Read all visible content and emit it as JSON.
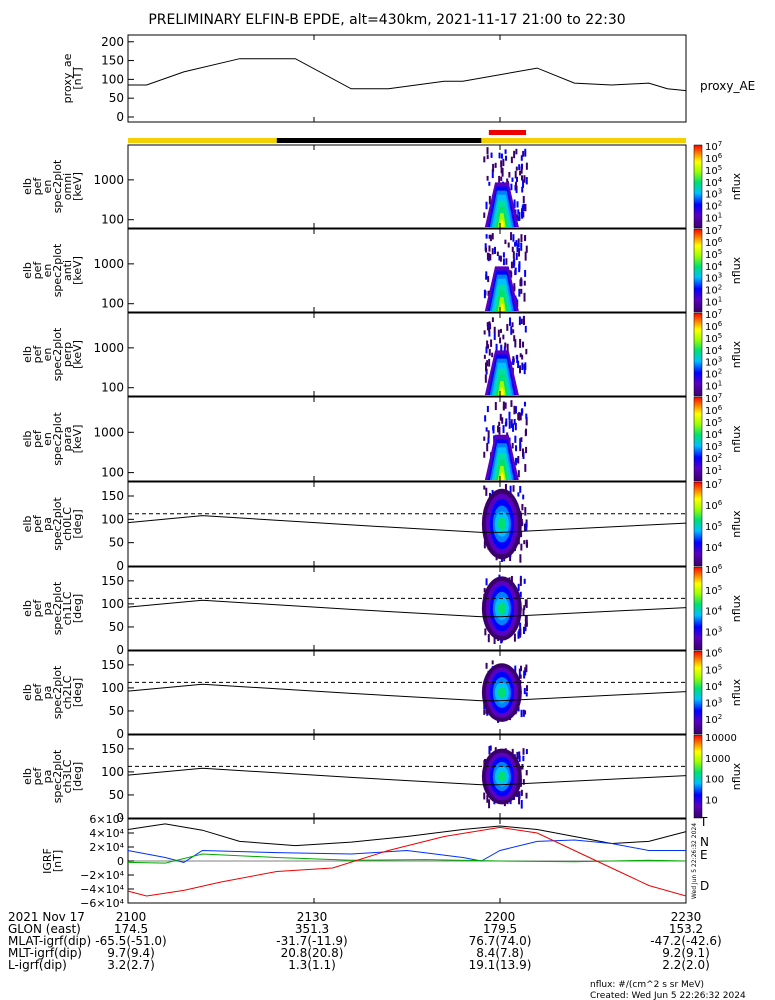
{
  "title": "PRELIMINARY ELFIN-B EPDE, alt=430km, 2021-11-17 21:00 to 22:30",
  "colors": {
    "gold": "#f5d000",
    "black": "#000000",
    "red": "#ee0000",
    "green": "#00aa00",
    "blue": "#0030ff",
    "line": "#000000"
  },
  "chart_data": [
    {
      "type": "line",
      "name": "proxy_ae",
      "ylabel": [
        "proxy_ae",
        "[nT]"
      ],
      "right_label": "proxy_AE",
      "yticks": [
        "200",
        "150",
        "100",
        "50",
        "0"
      ],
      "ylim": [
        0,
        210
      ],
      "x": [
        21.0,
        21.05,
        21.15,
        21.3,
        21.45,
        21.6,
        21.7,
        21.85,
        21.9,
        22.1,
        22.2,
        22.3,
        22.4,
        22.45,
        22.5
      ],
      "values": [
        85,
        85,
        120,
        155,
        155,
        75,
        75,
        95,
        95,
        130,
        90,
        85,
        90,
        75,
        70
      ]
    },
    {
      "type": "bar",
      "name": "orbit-segment-bar",
      "segments": [
        {
          "x0": 21.0,
          "x1": 21.4,
          "color": "gold"
        },
        {
          "x0": 21.4,
          "x1": 21.95,
          "color": "black"
        },
        {
          "x0": 21.95,
          "x1": 22.5,
          "color": "gold"
        }
      ],
      "science_zone": {
        "x0": 21.97,
        "x1": 22.07,
        "color": "red"
      }
    },
    {
      "type": "heatmap",
      "name": "spec-omni",
      "ylabel": [
        "elb",
        "pef",
        "en",
        "spec2plot",
        "omni",
        "[keV]"
      ],
      "yticks": [
        "1000",
        "100"
      ],
      "colorbar": {
        "ticks": [
          "10^7",
          "10^6",
          "10^5",
          "10^4",
          "10^3",
          "10^2",
          "10^1"
        ],
        "label": "nflux"
      }
    },
    {
      "type": "heatmap",
      "name": "spec-anti",
      "ylabel": [
        "elb",
        "pef",
        "en",
        "spec2plot",
        "anti",
        "[keV]"
      ],
      "yticks": [
        "1000",
        "100"
      ],
      "colorbar": {
        "ticks": [
          "10^7",
          "10^6",
          "10^5",
          "10^4",
          "10^3",
          "10^2",
          "10^1"
        ],
        "label": "nflux"
      }
    },
    {
      "type": "heatmap",
      "name": "spec-perp",
      "ylabel": [
        "elb",
        "pef",
        "en",
        "spec2plot",
        "perp",
        "[keV]"
      ],
      "yticks": [
        "1000",
        "100"
      ],
      "colorbar": {
        "ticks": [
          "10^7",
          "10^6",
          "10^5",
          "10^4",
          "10^3",
          "10^2",
          "10^1"
        ],
        "label": "nflux"
      }
    },
    {
      "type": "heatmap",
      "name": "spec-para",
      "ylabel": [
        "elb",
        "pef",
        "en",
        "spec2plot",
        "para",
        "[keV]"
      ],
      "yticks": [
        "1000",
        "100"
      ],
      "colorbar": {
        "ticks": [
          "10^7",
          "10^6",
          "10^5",
          "10^4",
          "10^3",
          "10^2",
          "10^1"
        ],
        "label": "nflux"
      }
    },
    {
      "type": "heatmap",
      "name": "pa-ch0",
      "ylabel": [
        "elb",
        "pef",
        "pa",
        "spec2plot",
        "ch0LC",
        "[deg]"
      ],
      "yticks": [
        "150",
        "100",
        "50",
        "0"
      ],
      "colorbar": {
        "ticks": [
          "10^7",
          "10^6",
          "10^5",
          "10^4"
        ],
        "label": "nflux"
      }
    },
    {
      "type": "heatmap",
      "name": "pa-ch1",
      "ylabel": [
        "elb",
        "pef",
        "pa",
        "spec2plot",
        "ch1LC",
        "[deg]"
      ],
      "yticks": [
        "150",
        "100",
        "50",
        "0"
      ],
      "colorbar": {
        "ticks": [
          "10^6",
          "10^5",
          "10^4",
          "10^3"
        ],
        "label": "nflux"
      }
    },
    {
      "type": "heatmap",
      "name": "pa-ch2",
      "ylabel": [
        "elb",
        "pef",
        "pa",
        "spec2plot",
        "ch2LC",
        "[deg]"
      ],
      "yticks": [
        "150",
        "100",
        "50",
        "0"
      ],
      "colorbar": {
        "ticks": [
          "10^6",
          "10^5",
          "10^4",
          "10^3",
          "10^2"
        ],
        "label": "nflux"
      }
    },
    {
      "type": "heatmap",
      "name": "pa-ch3",
      "ylabel": [
        "elb",
        "pef",
        "pa",
        "spec2plot",
        "ch3LC",
        "[deg]"
      ],
      "yticks": [
        "150",
        "100",
        "50",
        "0"
      ],
      "colorbar": {
        "ticks": [
          "10000",
          "1000",
          "100",
          "10"
        ],
        "label": "nflux"
      }
    },
    {
      "type": "line",
      "name": "igrf",
      "ylabel": [
        "IGRF",
        "[nT]"
      ],
      "yticks": [
        "6×10⁴",
        "4×10⁴",
        "2×10⁴",
        "0",
        "−2×10⁴",
        "−4×10⁴",
        "−6×10⁴"
      ],
      "ylim": [
        -60000,
        60000
      ],
      "side_text": "Wed Jun  5 22:26:32 2024",
      "series": [
        {
          "name": "T",
          "color": "black",
          "x": [
            21.0,
            21.1,
            21.2,
            21.3,
            21.45,
            21.6,
            21.75,
            21.9,
            22.0,
            22.1,
            22.2,
            22.3,
            22.4,
            22.5
          ],
          "values": [
            45000,
            53000,
            44000,
            28000,
            22000,
            27000,
            35000,
            45000,
            50000,
            45000,
            35000,
            25000,
            28000,
            42000
          ]
        },
        {
          "name": "N",
          "color": "blue",
          "x": [
            21.0,
            21.1,
            21.15,
            21.2,
            21.4,
            21.6,
            21.75,
            21.9,
            21.95,
            22.0,
            22.1,
            22.2,
            22.3,
            22.4,
            22.5
          ],
          "values": [
            15000,
            5000,
            -2000,
            15000,
            12000,
            10000,
            15000,
            5000,
            0,
            15000,
            28000,
            30000,
            25000,
            15000,
            15000
          ]
        },
        {
          "name": "E",
          "color": "green",
          "x": [
            21.0,
            21.1,
            21.2,
            21.4,
            21.6,
            21.8,
            22.0,
            22.2,
            22.4,
            22.5
          ],
          "values": [
            -2000,
            -3000,
            10000,
            5000,
            1000,
            2000,
            0,
            -1000,
            1000,
            0
          ]
        },
        {
          "name": "D",
          "color": "red",
          "x": [
            21.0,
            21.05,
            21.15,
            21.25,
            21.4,
            21.55,
            21.7,
            21.85,
            22.0,
            22.1,
            22.2,
            22.3,
            22.4,
            22.5
          ],
          "values": [
            -43000,
            -50000,
            -42000,
            -30000,
            -15000,
            -10000,
            15000,
            35000,
            48000,
            40000,
            15000,
            -10000,
            -35000,
            -50000
          ]
        }
      ]
    }
  ],
  "series_labels": {
    "T": "T",
    "N": "N",
    "E": "E",
    "D": "D"
  },
  "xaxis": {
    "ticks": [
      "2100",
      "2130",
      "2200",
      "2230"
    ],
    "tick_x": [
      21.0,
      21.5,
      22.0,
      22.5
    ]
  },
  "footer": {
    "row_labels": [
      "2021 Nov 17",
      "GLON (east)",
      "MLAT-igrf(dip)",
      "MLT-igrf(dip)",
      "L-igrf(dip)"
    ],
    "columns": [
      [
        "2100",
        "174.5",
        "-65.5(-51.0)",
        "9.7(9.4)",
        "3.2(2.7)"
      ],
      [
        "2130",
        "351.3",
        "-31.7(-11.9)",
        "20.8(20.8)",
        "1.3(1.1)"
      ],
      [
        "2200",
        "179.5",
        "76.7(74.0)",
        "8.4(7.8)",
        "19.1(13.9)"
      ],
      [
        "2230",
        "153.2",
        "-47.2(-42.6)",
        "9.2(9.1)",
        "2.2(2.0)"
      ]
    ],
    "units": "nflux: #/(cm^2 s sr MeV)",
    "created": "Created: Wed Jun  5 22:26:32 2024"
  }
}
